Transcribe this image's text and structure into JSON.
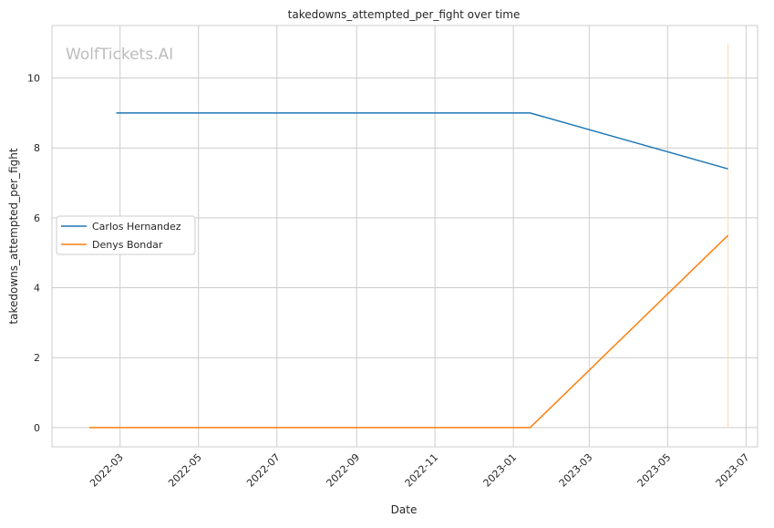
{
  "chart_data": {
    "type": "line",
    "title": "takedowns_attempted_per_fight over time",
    "xlabel": "Date",
    "ylabel": "takedowns_attempted_per_fight",
    "watermark": "WolfTickets.AI",
    "xlim": [
      "2022-01-07",
      "2023-07-10"
    ],
    "ylim": [
      -0.55,
      11.5
    ],
    "x_ticks": [
      "2022-03",
      "2022-05",
      "2022-07",
      "2022-09",
      "2022-11",
      "2023-01",
      "2023-03",
      "2023-05",
      "2023-07"
    ],
    "y_ticks": [
      0,
      2,
      4,
      6,
      8,
      10
    ],
    "grid": true,
    "legend_position": "center-left",
    "series": [
      {
        "name": "Carlos Hernandez",
        "color": "#1f77b4",
        "points": [
          {
            "x": "2022-02-26",
            "y": 9
          },
          {
            "x": "2023-01-14",
            "y": 9
          },
          {
            "x": "2023-06-17",
            "y": 7.4
          }
        ]
      },
      {
        "name": "Denys Bondar",
        "color": "#ff7f0e",
        "points": [
          {
            "x": "2022-02-05",
            "y": 0
          },
          {
            "x": "2023-01-14",
            "y": 0
          },
          {
            "x": "2023-06-17",
            "y": 5.5
          }
        ]
      }
    ],
    "annotations": [
      {
        "type": "vertical-line",
        "x": "2023-06-17",
        "y_range": [
          0,
          11
        ],
        "color": "#ffdcb8"
      }
    ]
  }
}
